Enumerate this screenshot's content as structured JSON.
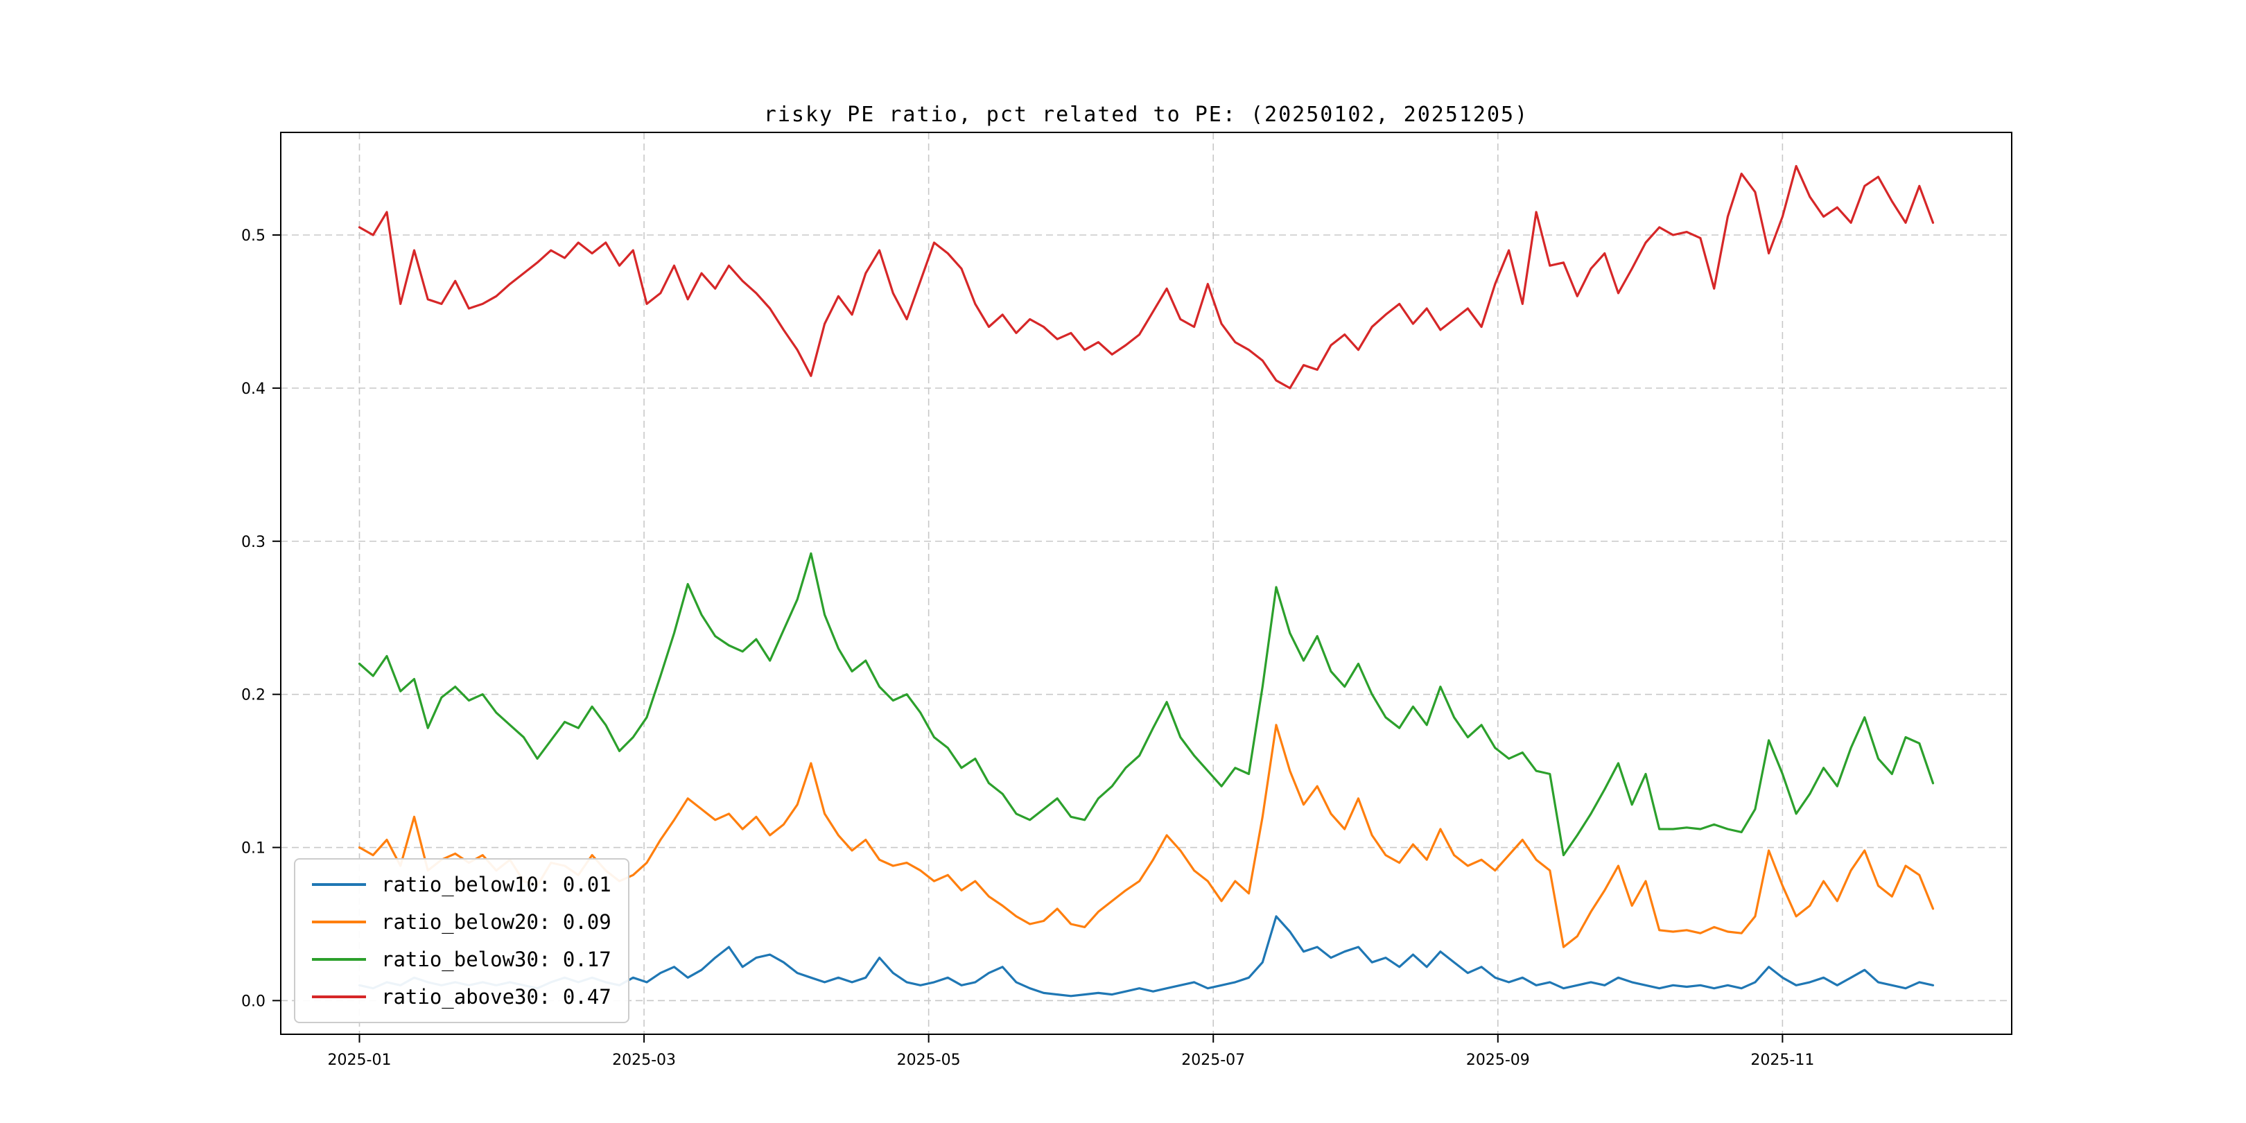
{
  "page": {
    "background": "#ffffff"
  },
  "chart_data": {
    "type": "line",
    "title": "risky PE ratio, pct related to PE: (20250102, 20251205)",
    "xlabel": "",
    "ylabel": "",
    "x_count": 116,
    "xlim": [
      -5.75,
      120.75
    ],
    "ylim": [
      -0.022,
      0.567
    ],
    "grid": {
      "show": true,
      "style": "dashed",
      "color": "#c8c8c8"
    },
    "colors": {
      "spine": "#000000",
      "tick_label": "#000000"
    },
    "legend_position": "lower-left",
    "x_ticks": [
      {
        "pos": 0,
        "label": "2025-01"
      },
      {
        "pos": 20.8,
        "label": "2025-03"
      },
      {
        "pos": 41.6,
        "label": "2025-05"
      },
      {
        "pos": 62.4,
        "label": "2025-07"
      },
      {
        "pos": 83.2,
        "label": "2025-09"
      },
      {
        "pos": 104,
        "label": "2025-11"
      }
    ],
    "y_ticks": [
      {
        "pos": 0.0,
        "label": "0.0"
      },
      {
        "pos": 0.1,
        "label": "0.1"
      },
      {
        "pos": 0.2,
        "label": "0.2"
      },
      {
        "pos": 0.3,
        "label": "0.3"
      },
      {
        "pos": 0.4,
        "label": "0.4"
      },
      {
        "pos": 0.5,
        "label": "0.5"
      }
    ],
    "series": [
      {
        "name": "ratio_below10",
        "legend_label": "ratio_below10: 0.01",
        "color": "#1f77b4",
        "values": [
          0.01,
          0.008,
          0.012,
          0.01,
          0.015,
          0.012,
          0.01,
          0.012,
          0.01,
          0.012,
          0.01,
          0.012,
          0.01,
          0.008,
          0.012,
          0.015,
          0.012,
          0.015,
          0.012,
          0.01,
          0.015,
          0.012,
          0.018,
          0.022,
          0.015,
          0.02,
          0.028,
          0.035,
          0.022,
          0.028,
          0.03,
          0.025,
          0.018,
          0.015,
          0.012,
          0.015,
          0.012,
          0.015,
          0.028,
          0.018,
          0.012,
          0.01,
          0.012,
          0.015,
          0.01,
          0.012,
          0.018,
          0.022,
          0.012,
          0.008,
          0.005,
          0.004,
          0.003,
          0.004,
          0.005,
          0.004,
          0.006,
          0.008,
          0.006,
          0.008,
          0.01,
          0.012,
          0.008,
          0.01,
          0.012,
          0.015,
          0.025,
          0.055,
          0.045,
          0.032,
          0.035,
          0.028,
          0.032,
          0.035,
          0.025,
          0.028,
          0.022,
          0.03,
          0.022,
          0.032,
          0.025,
          0.018,
          0.022,
          0.015,
          0.012,
          0.015,
          0.01,
          0.012,
          0.008,
          0.01,
          0.012,
          0.01,
          0.015,
          0.012,
          0.01,
          0.008,
          0.01,
          0.009,
          0.01,
          0.008,
          0.01,
          0.008,
          0.012,
          0.022,
          0.015,
          0.01,
          0.012,
          0.015,
          0.01,
          0.015,
          0.02,
          0.012,
          0.01,
          0.008,
          0.012,
          0.01
        ]
      },
      {
        "name": "ratio_below20",
        "legend_label": "ratio_below20: 0.09",
        "color": "#ff7f0e",
        "values": [
          0.1,
          0.095,
          0.105,
          0.088,
          0.12,
          0.085,
          0.092,
          0.096,
          0.09,
          0.095,
          0.085,
          0.092,
          0.078,
          0.075,
          0.09,
          0.088,
          0.082,
          0.095,
          0.085,
          0.078,
          0.082,
          0.09,
          0.105,
          0.118,
          0.132,
          0.125,
          0.118,
          0.122,
          0.112,
          0.12,
          0.108,
          0.115,
          0.128,
          0.155,
          0.122,
          0.108,
          0.098,
          0.105,
          0.092,
          0.088,
          0.09,
          0.085,
          0.078,
          0.082,
          0.072,
          0.078,
          0.068,
          0.062,
          0.055,
          0.05,
          0.052,
          0.06,
          0.05,
          0.048,
          0.058,
          0.065,
          0.072,
          0.078,
          0.092,
          0.108,
          0.098,
          0.085,
          0.078,
          0.065,
          0.078,
          0.07,
          0.12,
          0.18,
          0.15,
          0.128,
          0.14,
          0.122,
          0.112,
          0.132,
          0.108,
          0.095,
          0.09,
          0.102,
          0.092,
          0.112,
          0.095,
          0.088,
          0.092,
          0.085,
          0.095,
          0.105,
          0.092,
          0.085,
          0.035,
          0.042,
          0.058,
          0.072,
          0.088,
          0.062,
          0.078,
          0.046,
          0.045,
          0.046,
          0.044,
          0.048,
          0.045,
          0.044,
          0.055,
          0.098,
          0.075,
          0.055,
          0.062,
          0.078,
          0.065,
          0.085,
          0.098,
          0.075,
          0.068,
          0.088,
          0.082,
          0.06
        ]
      },
      {
        "name": "ratio_below30",
        "legend_label": "ratio_below30: 0.17",
        "color": "#2ca02c",
        "values": [
          0.22,
          0.212,
          0.225,
          0.202,
          0.21,
          0.178,
          0.198,
          0.205,
          0.196,
          0.2,
          0.188,
          0.18,
          0.172,
          0.158,
          0.17,
          0.182,
          0.178,
          0.192,
          0.18,
          0.163,
          0.172,
          0.185,
          0.212,
          0.24,
          0.272,
          0.252,
          0.238,
          0.232,
          0.228,
          0.236,
          0.222,
          0.242,
          0.262,
          0.292,
          0.252,
          0.23,
          0.215,
          0.222,
          0.205,
          0.196,
          0.2,
          0.188,
          0.172,
          0.165,
          0.152,
          0.158,
          0.142,
          0.135,
          0.122,
          0.118,
          0.125,
          0.132,
          0.12,
          0.118,
          0.132,
          0.14,
          0.152,
          0.16,
          0.178,
          0.195,
          0.172,
          0.16,
          0.15,
          0.14,
          0.152,
          0.148,
          0.205,
          0.27,
          0.24,
          0.222,
          0.238,
          0.215,
          0.205,
          0.22,
          0.2,
          0.185,
          0.178,
          0.192,
          0.18,
          0.205,
          0.185,
          0.172,
          0.18,
          0.165,
          0.158,
          0.162,
          0.15,
          0.148,
          0.095,
          0.108,
          0.122,
          0.138,
          0.155,
          0.128,
          0.148,
          0.112,
          0.112,
          0.113,
          0.112,
          0.115,
          0.112,
          0.11,
          0.125,
          0.17,
          0.148,
          0.122,
          0.135,
          0.152,
          0.14,
          0.165,
          0.185,
          0.158,
          0.148,
          0.172,
          0.168,
          0.142
        ]
      },
      {
        "name": "ratio_above30",
        "legend_label": "ratio_above30: 0.47",
        "color": "#d62728",
        "values": [
          0.505,
          0.5,
          0.515,
          0.455,
          0.49,
          0.458,
          0.455,
          0.47,
          0.452,
          0.455,
          0.46,
          0.468,
          0.475,
          0.482,
          0.49,
          0.485,
          0.495,
          0.488,
          0.495,
          0.48,
          0.49,
          0.455,
          0.462,
          0.48,
          0.458,
          0.475,
          0.465,
          0.48,
          0.47,
          0.462,
          0.452,
          0.438,
          0.425,
          0.408,
          0.442,
          0.46,
          0.448,
          0.475,
          0.49,
          0.462,
          0.445,
          0.47,
          0.495,
          0.488,
          0.478,
          0.455,
          0.44,
          0.448,
          0.436,
          0.445,
          0.44,
          0.432,
          0.436,
          0.425,
          0.43,
          0.422,
          0.428,
          0.435,
          0.45,
          0.465,
          0.445,
          0.44,
          0.468,
          0.442,
          0.43,
          0.425,
          0.418,
          0.405,
          0.4,
          0.415,
          0.412,
          0.428,
          0.435,
          0.425,
          0.44,
          0.448,
          0.455,
          0.442,
          0.452,
          0.438,
          0.445,
          0.452,
          0.44,
          0.468,
          0.49,
          0.455,
          0.515,
          0.48,
          0.482,
          0.46,
          0.478,
          0.488,
          0.462,
          0.478,
          0.495,
          0.505,
          0.5,
          0.502,
          0.498,
          0.465,
          0.512,
          0.54,
          0.528,
          0.488,
          0.512,
          0.545,
          0.525,
          0.512,
          0.518,
          0.508,
          0.532,
          0.538,
          0.522,
          0.508,
          0.532,
          0.508
        ]
      }
    ]
  }
}
